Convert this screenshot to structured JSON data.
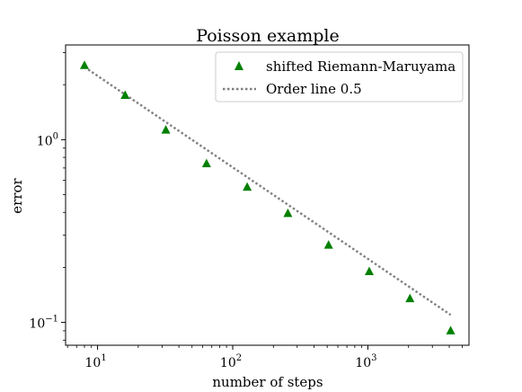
{
  "chart_data": {
    "type": "scatter",
    "title": "Poisson example",
    "xlabel": "number of steps",
    "ylabel": "error",
    "xscale": "log",
    "yscale": "log",
    "xlim": [
      5.8,
      5600
    ],
    "ylim": [
      0.075,
      3.3
    ],
    "grid": false,
    "legend_position": "top-right",
    "x_ticks": [
      {
        "value": 10,
        "base": "10",
        "exp": "1"
      },
      {
        "value": 100,
        "base": "10",
        "exp": "2"
      },
      {
        "value": 1000,
        "base": "10",
        "exp": "3"
      }
    ],
    "y_ticks": [
      {
        "value": 1,
        "base": "10",
        "exp": "0"
      },
      {
        "value": 0.1,
        "base": "10",
        "exp": "−1"
      }
    ],
    "series": [
      {
        "name": "shifted Riemann-Maruyama",
        "kind": "markers",
        "marker": "triangle",
        "color": "#008000",
        "x": [
          8,
          16,
          32,
          64,
          128,
          256,
          512,
          1024,
          2048,
          4096
        ],
        "y": [
          2.55,
          1.75,
          1.13,
          0.74,
          0.55,
          0.395,
          0.265,
          0.19,
          0.135,
          0.09
        ]
      },
      {
        "name": "Order line 0.5",
        "kind": "line",
        "style": "dotted",
        "color": "#808080",
        "x": [
          8,
          4096
        ],
        "y": [
          2.5,
          0.11
        ]
      }
    ]
  }
}
